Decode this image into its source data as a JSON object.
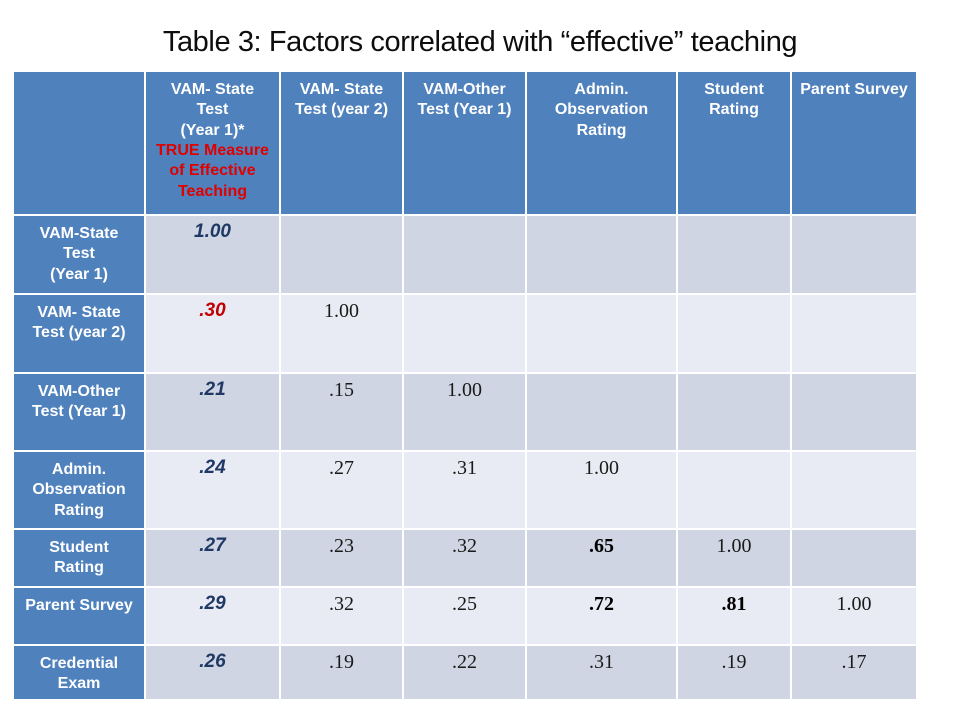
{
  "title": "Table 3: Factors correlated with “effective” teaching",
  "colors": {
    "header_blue": "#4F81BD",
    "header_text": "#FFFFFF",
    "header_red": "#E00000",
    "band_dark": "#CFD5E3",
    "band_light": "#E9EBF4",
    "value_navy": "#1F3864",
    "value_red": "#C00000",
    "title_text": "#0D0D0D"
  },
  "table": {
    "corner_label": "",
    "column_headers": [
      {
        "main": "VAM- State\nTest\n(Year 1)*",
        "highlight": "TRUE Measure\nof Effective\nTeaching"
      },
      {
        "main": "VAM- State\nTest (year 2)"
      },
      {
        "main": "VAM-Other\nTest (Year 1)"
      },
      {
        "main": "Admin.\nObservation\nRating"
      },
      {
        "main": "Student\nRating"
      },
      {
        "main": "Parent Survey"
      }
    ],
    "rows": [
      {
        "label": "VAM-State\nTest\n(Year 1)",
        "cells": [
          {
            "v": "1.00",
            "s": "emph"
          },
          {
            "v": ""
          },
          {
            "v": ""
          },
          {
            "v": ""
          },
          {
            "v": ""
          },
          {
            "v": ""
          }
        ]
      },
      {
        "label": "VAM- State\nTest (year 2)",
        "cells": [
          {
            "v": ".30",
            "s": "red"
          },
          {
            "v": "1.00"
          },
          {
            "v": ""
          },
          {
            "v": ""
          },
          {
            "v": ""
          },
          {
            "v": ""
          }
        ]
      },
      {
        "label": "VAM-Other\nTest (Year 1)",
        "cells": [
          {
            "v": ".21",
            "s": "emph"
          },
          {
            "v": ".15"
          },
          {
            "v": "1.00"
          },
          {
            "v": ""
          },
          {
            "v": ""
          },
          {
            "v": ""
          }
        ]
      },
      {
        "label": "Admin.\nObservation\nRating",
        "cells": [
          {
            "v": ".24",
            "s": "emph"
          },
          {
            "v": ".27"
          },
          {
            "v": ".31"
          },
          {
            "v": "1.00"
          },
          {
            "v": ""
          },
          {
            "v": ""
          }
        ]
      },
      {
        "label": "Student\nRating",
        "cells": [
          {
            "v": ".27",
            "s": "emph"
          },
          {
            "v": ".23"
          },
          {
            "v": ".32"
          },
          {
            "v": ".65",
            "s": "bold"
          },
          {
            "v": "1.00"
          },
          {
            "v": ""
          }
        ]
      },
      {
        "label": "Parent Survey",
        "cells": [
          {
            "v": ".29",
            "s": "emph"
          },
          {
            "v": ".32"
          },
          {
            "v": ".25"
          },
          {
            "v": ".72",
            "s": "bold"
          },
          {
            "v": ".81",
            "s": "bold"
          },
          {
            "v": "1.00"
          }
        ]
      },
      {
        "label": "Credential\nExam",
        "cells": [
          {
            "v": ".26",
            "s": "emph"
          },
          {
            "v": ".19"
          },
          {
            "v": ".22"
          },
          {
            "v": ".31"
          },
          {
            "v": ".19"
          },
          {
            "v": ".17"
          }
        ]
      }
    ]
  }
}
